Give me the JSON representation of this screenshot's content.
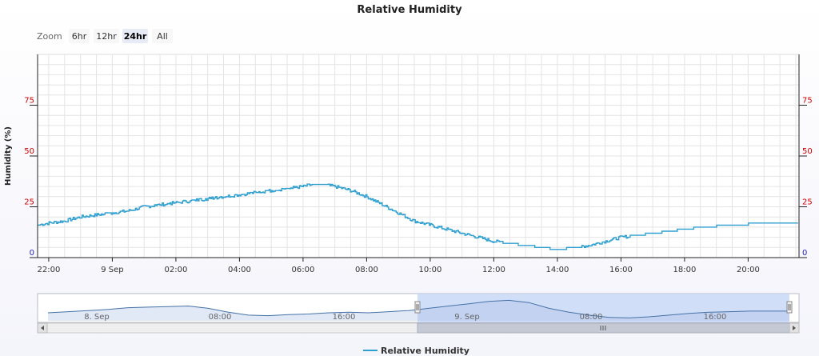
{
  "zoom": {
    "label": "Zoom",
    "buttons": [
      {
        "label": "6hr",
        "active": false
      },
      {
        "label": "12hr",
        "active": false
      },
      {
        "label": "24hr",
        "active": true
      },
      {
        "label": "All",
        "active": false
      }
    ]
  },
  "chart_data": {
    "type": "line",
    "title": "Relative Humidity",
    "ylabel": "Humidity (%)",
    "ylim": [
      0,
      100
    ],
    "yticks": [
      0,
      25,
      50,
      75
    ],
    "x_tick_labels": [
      "22:00",
      "9 Sep",
      "02:00",
      "04:00",
      "06:00",
      "08:00",
      "10:00",
      "12:00",
      "14:00",
      "16:00",
      "18:00",
      "20:00"
    ],
    "grid": true,
    "legend": "bottom-center",
    "series": [
      {
        "name": "Relative Humidity",
        "color": "#2f9fd0",
        "x_hours": [
          -2.35,
          -2,
          -1.5,
          -1,
          -0.5,
          0,
          0.5,
          1,
          1.5,
          2,
          2.5,
          3,
          3.5,
          4,
          4.5,
          5,
          5.5,
          6,
          6.3,
          6.6,
          7,
          7.5,
          8,
          8.5,
          9,
          9.5,
          10,
          10.5,
          11,
          11.5,
          12,
          12.5,
          13,
          13.5,
          14,
          14.5,
          15,
          15.5,
          16,
          16.5,
          17,
          17.5,
          18,
          18.5,
          19,
          19.5,
          20,
          20.5,
          21,
          21.5
        ],
        "values": [
          16,
          17,
          18,
          20,
          21,
          22,
          23,
          25,
          26,
          27,
          28,
          29,
          30,
          31,
          32,
          33,
          34,
          35,
          36,
          36,
          35,
          33,
          30,
          26,
          22,
          18,
          16,
          14,
          12,
          10,
          8,
          7,
          6,
          5,
          4,
          5,
          6,
          8,
          10,
          11,
          12,
          13,
          14,
          15,
          15.5,
          16,
          16.5,
          17,
          17,
          17
        ]
      }
    ]
  },
  "navigator": {
    "labels": [
      "8. Sep",
      "08:00",
      "16:00",
      "9. Sep",
      "08:00",
      "16:00"
    ],
    "values": [
      14,
      16,
      18,
      20,
      23,
      24,
      25,
      26,
      22,
      15,
      10,
      9,
      11,
      12,
      14,
      15,
      14,
      16,
      18,
      22,
      26,
      30,
      34,
      36,
      32,
      22,
      15,
      10,
      6,
      5,
      7,
      10,
      13,
      15,
      16,
      17,
      17,
      17
    ]
  },
  "legend": {
    "label": "Relative Humidity"
  },
  "colors": {
    "line": "#2f9fd0",
    "nav_line": "#4572a7",
    "nav_selection": "#d2defa",
    "axis_tick_red": "#cc0000",
    "axis_tick_blue": "#2222cc"
  }
}
